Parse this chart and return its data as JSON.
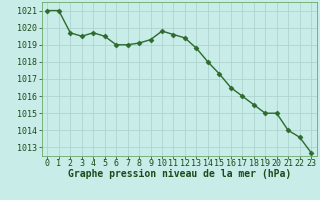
{
  "x": [
    0,
    1,
    2,
    3,
    4,
    5,
    6,
    7,
    8,
    9,
    10,
    11,
    12,
    13,
    14,
    15,
    16,
    17,
    18,
    19,
    20,
    21,
    22,
    23
  ],
  "y": [
    1021.0,
    1021.0,
    1019.7,
    1019.5,
    1019.7,
    1019.5,
    1019.0,
    1019.0,
    1019.1,
    1019.3,
    1019.8,
    1019.6,
    1019.4,
    1018.8,
    1018.0,
    1017.3,
    1016.5,
    1016.0,
    1015.5,
    1015.0,
    1015.0,
    1014.0,
    1013.6,
    1012.7
  ],
  "line_color": "#2d6a2d",
  "marker": "D",
  "marker_size": 2.5,
  "bg_color": "#c8ece8",
  "grid_color": "#b0d4ce",
  "xlabel": "Graphe pression niveau de la mer (hPa)",
  "xlabel_color": "#1a4a1a",
  "xlabel_fontsize": 7,
  "tick_label_color": "#1a4a1a",
  "tick_fontsize": 6,
  "ylim": [
    1012.5,
    1021.5
  ],
  "xlim": [
    -0.5,
    23.5
  ],
  "yticks": [
    1013,
    1014,
    1015,
    1016,
    1017,
    1018,
    1019,
    1020,
    1021
  ],
  "xticks": [
    0,
    1,
    2,
    3,
    4,
    5,
    6,
    7,
    8,
    9,
    10,
    11,
    12,
    13,
    14,
    15,
    16,
    17,
    18,
    19,
    20,
    21,
    22,
    23
  ]
}
